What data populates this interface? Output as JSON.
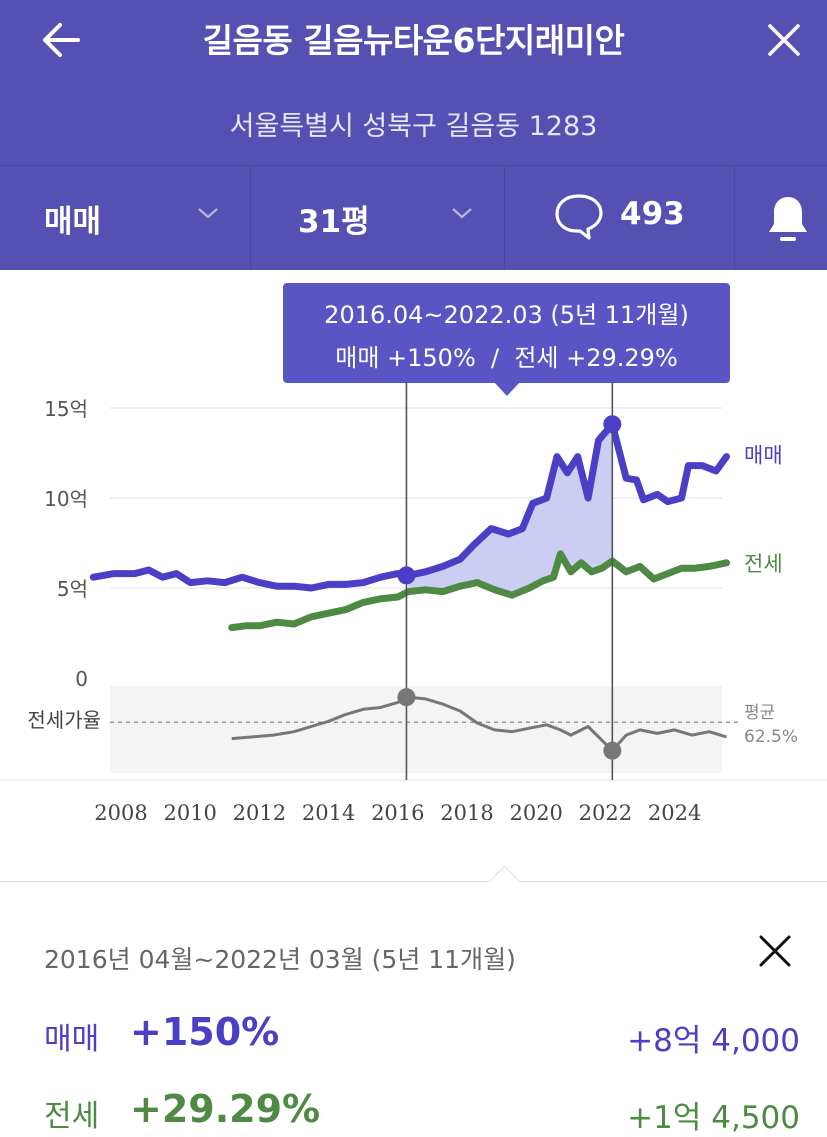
{
  "header": {
    "title": "길음동 길음뉴타운6단지래미안",
    "address": "서울특별시 성북구 길음동 1283",
    "back_icon": "arrow-left-icon",
    "close_icon": "close-icon"
  },
  "toolbar": {
    "trade_type": "매매",
    "area": "31평",
    "comment_count": "493",
    "icons": [
      "chevron-down-icon",
      "speech-bubble-icon",
      "bell-icon"
    ]
  },
  "tooltip": {
    "period": "2016.04~2022.03 (5년 11개월)",
    "summary": "매매 +150%  /  전세 +29.29%"
  },
  "chart_data": {
    "type": "line",
    "x_unit": "year",
    "x_ticks": [
      2008,
      2010,
      2012,
      2014,
      2016,
      2018,
      2020,
      2022,
      2024
    ],
    "y_ticks": [
      {
        "value": 15,
        "label": "15억"
      },
      {
        "value": 10,
        "label": "10억"
      },
      {
        "value": 5,
        "label": "5억"
      },
      {
        "value": 0,
        "label": "0"
      }
    ],
    "ylim": [
      0,
      15
    ],
    "grid": true,
    "series": [
      {
        "name": "매매",
        "color": "#4b3fc6",
        "points": [
          [
            2007.2,
            5.6
          ],
          [
            2007.8,
            5.8
          ],
          [
            2008.4,
            5.8
          ],
          [
            2008.8,
            6.0
          ],
          [
            2009.2,
            5.6
          ],
          [
            2009.6,
            5.8
          ],
          [
            2010.0,
            5.3
          ],
          [
            2010.5,
            5.4
          ],
          [
            2011.0,
            5.3
          ],
          [
            2011.5,
            5.6
          ],
          [
            2012.0,
            5.3
          ],
          [
            2012.5,
            5.1
          ],
          [
            2013.0,
            5.1
          ],
          [
            2013.5,
            5.0
          ],
          [
            2014.0,
            5.2
          ],
          [
            2014.5,
            5.2
          ],
          [
            2015.0,
            5.3
          ],
          [
            2015.5,
            5.6
          ],
          [
            2016.0,
            5.8
          ],
          [
            2016.3,
            5.7
          ],
          [
            2016.8,
            5.9
          ],
          [
            2017.3,
            6.2
          ],
          [
            2017.8,
            6.6
          ],
          [
            2018.2,
            7.4
          ],
          [
            2018.7,
            8.3
          ],
          [
            2019.2,
            8.0
          ],
          [
            2019.6,
            8.3
          ],
          [
            2019.9,
            9.7
          ],
          [
            2020.3,
            10.0
          ],
          [
            2020.6,
            12.3
          ],
          [
            2020.9,
            11.4
          ],
          [
            2021.2,
            12.3
          ],
          [
            2021.5,
            10.0
          ],
          [
            2021.8,
            13.2
          ],
          [
            2022.2,
            14.1
          ],
          [
            2022.6,
            11.1
          ],
          [
            2022.9,
            11.0
          ],
          [
            2023.1,
            9.9
          ],
          [
            2023.5,
            10.2
          ],
          [
            2023.8,
            9.8
          ],
          [
            2024.2,
            10.0
          ],
          [
            2024.4,
            11.8
          ],
          [
            2024.8,
            11.8
          ],
          [
            2025.2,
            11.5
          ],
          [
            2025.5,
            12.3
          ]
        ]
      },
      {
        "name": "전세",
        "color": "#4e8a44",
        "points": [
          [
            2011.2,
            2.8
          ],
          [
            2011.6,
            2.9
          ],
          [
            2012.0,
            2.9
          ],
          [
            2012.5,
            3.1
          ],
          [
            2013.0,
            3.0
          ],
          [
            2013.5,
            3.4
          ],
          [
            2014.0,
            3.6
          ],
          [
            2014.5,
            3.8
          ],
          [
            2015.0,
            4.2
          ],
          [
            2015.5,
            4.4
          ],
          [
            2016.0,
            4.5
          ],
          [
            2016.3,
            4.8
          ],
          [
            2016.8,
            4.9
          ],
          [
            2017.3,
            4.8
          ],
          [
            2017.8,
            5.1
          ],
          [
            2018.3,
            5.3
          ],
          [
            2018.8,
            4.9
          ],
          [
            2019.3,
            4.6
          ],
          [
            2019.8,
            5.0
          ],
          [
            2020.2,
            5.4
          ],
          [
            2020.5,
            5.6
          ],
          [
            2020.7,
            6.9
          ],
          [
            2021.0,
            5.9
          ],
          [
            2021.3,
            6.4
          ],
          [
            2021.6,
            5.9
          ],
          [
            2021.9,
            6.1
          ],
          [
            2022.2,
            6.5
          ],
          [
            2022.6,
            5.9
          ],
          [
            2023.0,
            6.2
          ],
          [
            2023.4,
            5.5
          ],
          [
            2023.8,
            5.8
          ],
          [
            2024.2,
            6.1
          ],
          [
            2024.6,
            6.1
          ],
          [
            2025.0,
            6.2
          ],
          [
            2025.5,
            6.4
          ]
        ]
      }
    ],
    "ratio_series": {
      "name": "전세가율",
      "color": "#777777",
      "points": [
        [
          2011.2,
          53
        ],
        [
          2011.8,
          54
        ],
        [
          2012.4,
          55
        ],
        [
          2013.0,
          57
        ],
        [
          2013.5,
          60
        ],
        [
          2014.0,
          63
        ],
        [
          2014.5,
          67
        ],
        [
          2015.0,
          70
        ],
        [
          2015.5,
          71
        ],
        [
          2016.0,
          74
        ],
        [
          2016.3,
          77
        ],
        [
          2016.8,
          76
        ],
        [
          2017.3,
          73
        ],
        [
          2017.8,
          69
        ],
        [
          2018.3,
          62
        ],
        [
          2018.8,
          58
        ],
        [
          2019.3,
          57
        ],
        [
          2019.8,
          59
        ],
        [
          2020.3,
          61
        ],
        [
          2020.7,
          58
        ],
        [
          2021.0,
          55
        ],
        [
          2021.5,
          60
        ],
        [
          2022.2,
          46
        ],
        [
          2022.6,
          55
        ],
        [
          2023.0,
          58
        ],
        [
          2023.5,
          56
        ],
        [
          2024.0,
          58
        ],
        [
          2024.5,
          55
        ],
        [
          2025.0,
          57
        ],
        [
          2025.5,
          54
        ]
      ],
      "average_label": "평균",
      "average_value": "62.5%"
    },
    "selection": {
      "start": 2016.25,
      "end": 2022.2,
      "sale_start": 5.7,
      "sale_end": 14.1,
      "ratio_start": 77,
      "ratio_end": 46
    }
  },
  "panel": {
    "period": "2016년 04월~2022년 03월 (5년 11개월)",
    "sale": {
      "label": "매매",
      "pct": "+150%",
      "amount": "+8억 4,000"
    },
    "lease": {
      "label": "전세",
      "pct": "+29.29%",
      "amount": "+1억 4,500"
    }
  }
}
